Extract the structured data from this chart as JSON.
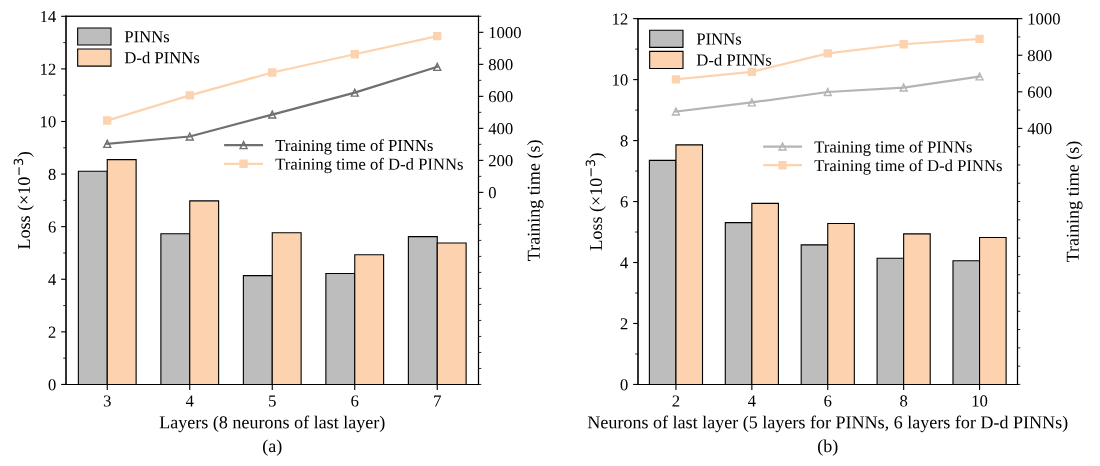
{
  "chart_data": [
    {
      "type": "bar",
      "xlabel": "Layers (8 neurons of last layer)",
      "ylabel": "Loss (×10$^{−3}$)",
      "y2label": "Training time (s)",
      "categories": [
        "3",
        "4",
        "5",
        "6",
        "7"
      ],
      "series": [
        {
          "name": "PINNs",
          "color": "#bdbdbd",
          "values": [
            8.11,
            5.73,
            4.14,
            4.22,
            5.62
          ]
        },
        {
          "name": "D-d PINNs",
          "color": "#fcd3ae",
          "values": [
            8.55,
            6.98,
            5.77,
            4.93,
            5.38
          ]
        },
        {
          "name": "Training time of PINNs",
          "type": "line",
          "axis": "y2",
          "marker": "triangle",
          "color": "#707070",
          "values": [
            303,
            349,
            486,
            623,
            784
          ]
        },
        {
          "name": "Training time of D-d PINNs",
          "type": "line",
          "axis": "y2",
          "marker": "square",
          "color": "#fcd3ae",
          "values": [
            449,
            606,
            749,
            863,
            976
          ]
        }
      ],
      "ylim": [
        0,
        14
      ],
      "yticks": [
        0,
        2,
        4,
        6,
        8,
        10,
        12,
        14
      ],
      "y2lim": [
        -1200,
        1100
      ],
      "y2ticks": [
        0,
        200,
        400,
        600,
        800,
        1000
      ],
      "legend": "top left",
      "annotations": [
        "(a)"
      ]
    },
    {
      "type": "bar",
      "xlabel": "Neurons of last layer (5 layers for PINNs, 6 layers for D-d PINNs)",
      "ylabel": "Loss (×10$^{−3}$)",
      "y2label": "Training time (s)",
      "categories": [
        "2",
        "4",
        "6",
        "8",
        "10"
      ],
      "series": [
        {
          "name": "PINNs",
          "color": "#bdbdbd",
          "values": [
            7.35,
            5.31,
            4.58,
            4.14,
            4.06
          ]
        },
        {
          "name": "D-d PINNs",
          "color": "#fcd3ae",
          "values": [
            7.86,
            5.94,
            5.28,
            4.94,
            4.82
          ]
        },
        {
          "name": "Training time of PINNs",
          "type": "line",
          "axis": "y2",
          "marker": "triangle",
          "color": "#b4b4b4",
          "values": [
            492,
            542,
            599,
            623,
            684
          ]
        },
        {
          "name": "Training time of D-d PINNs",
          "type": "line",
          "axis": "y2",
          "marker": "square",
          "color": "#fcd3ae",
          "values": [
            668,
            709,
            810,
            860,
            889
          ]
        }
      ],
      "ylim": [
        0,
        12
      ],
      "yticks": [
        0,
        2,
        4,
        6,
        8,
        10,
        12
      ],
      "y2lim": [
        -1000,
        1000
      ],
      "y2ticks": [
        400,
        600,
        800,
        1000
      ],
      "legend": "top left",
      "annotations": [
        "(b)"
      ]
    }
  ]
}
